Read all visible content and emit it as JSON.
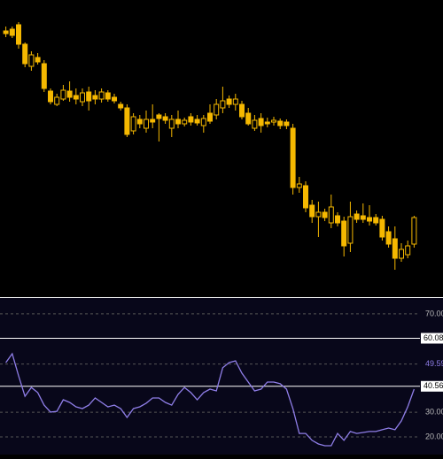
{
  "chart_data": [
    {
      "type": "candlestick",
      "color": "#f5b800",
      "ylim": [
        70,
        400
      ],
      "categories": [
        null,
        null,
        null,
        null,
        null,
        null,
        null,
        null,
        null,
        null,
        null,
        null,
        null,
        null,
        null,
        null,
        null,
        null,
        null,
        null,
        null,
        null,
        null,
        null,
        null,
        null,
        null,
        null,
        null,
        null,
        null,
        null,
        null,
        null,
        null,
        null,
        null,
        null,
        null,
        null,
        null,
        null,
        null,
        null,
        null,
        null,
        null,
        null,
        null,
        null,
        null,
        null,
        null,
        null,
        null,
        null,
        null,
        null,
        null,
        null,
        null,
        null,
        null,
        null,
        null
      ],
      "open": [
        365,
        367,
        372,
        350,
        325,
        335,
        328,
        297,
        282,
        288,
        297,
        292,
        285,
        296,
        292,
        288,
        295,
        290,
        282,
        278,
        252,
        265,
        255,
        265,
        270,
        268,
        255,
        265,
        260,
        268,
        265,
        258,
        272,
        270,
        278,
        288,
        282,
        282,
        272,
        255,
        266,
        262,
        262,
        263,
        262,
        255,
        188,
        190,
        168,
        155,
        160,
        148,
        156,
        150,
        125,
        158,
        156,
        154,
        154,
        152,
        138,
        130,
        108,
        112,
        124
      ],
      "high": [
        370,
        370,
        375,
        352,
        342,
        340,
        332,
        300,
        294,
        304,
        308,
        300,
        300,
        302,
        298,
        300,
        298,
        294,
        285,
        282,
        272,
        270,
        275,
        282,
        272,
        272,
        270,
        275,
        267,
        272,
        270,
        270,
        282,
        288,
        302,
        292,
        294,
        286,
        278,
        270,
        272,
        267,
        268,
        266,
        265,
        260,
        200,
        195,
        174,
        172,
        164,
        180,
        160,
        155,
        172,
        162,
        170,
        168,
        158,
        156,
        144,
        144,
        125,
        128,
        156
      ],
      "low": [
        358,
        357,
        345,
        324,
        320,
        327,
        296,
        282,
        280,
        286,
        285,
        282,
        280,
        275,
        282,
        284,
        285,
        283,
        275,
        245,
        248,
        255,
        250,
        255,
        240,
        260,
        245,
        255,
        257,
        258,
        258,
        250,
        260,
        265,
        272,
        278,
        275,
        265,
        258,
        252,
        250,
        256,
        258,
        254,
        254,
        180,
        182,
        160,
        148,
        132,
        150,
        142,
        144,
        110,
        115,
        148,
        148,
        145,
        145,
        128,
        120,
        95,
        104,
        108,
        120
      ],
      "close": [
        362,
        360,
        350,
        328,
        338,
        330,
        300,
        285,
        290,
        298,
        290,
        288,
        295,
        286,
        288,
        296,
        288,
        286,
        278,
        248,
        268,
        260,
        265,
        262,
        266,
        264,
        265,
        260,
        264,
        262,
        261,
        266,
        263,
        282,
        286,
        282,
        288,
        268,
        260,
        264,
        258,
        260,
        264,
        258,
        258,
        188,
        192,
        165,
        155,
        160,
        154,
        166,
        148,
        122,
        155,
        152,
        152,
        150,
        148,
        132,
        124,
        108,
        118,
        122,
        154
      ]
    },
    {
      "type": "line",
      "color": "#8f7ee8",
      "xlim": [
        -0.5,
        64.5
      ],
      "ylim": [
        12.8,
        76.8
      ],
      "x": [
        0,
        1,
        2,
        3,
        4,
        5,
        6,
        7,
        8,
        9,
        10,
        11,
        12,
        13,
        14,
        15,
        16,
        17,
        18,
        19,
        20,
        21,
        22,
        23,
        24,
        25,
        26,
        27,
        28,
        29,
        30,
        31,
        32,
        33,
        34,
        35,
        36,
        37,
        38,
        39,
        40,
        41,
        42,
        43,
        44,
        45,
        46,
        47,
        48,
        49,
        50,
        51,
        52,
        53,
        54,
        55,
        56,
        57,
        58,
        59,
        60,
        61,
        62,
        63,
        64
      ],
      "values": [
        50.2,
        53.8,
        44.8,
        36.5,
        40.1,
        38.0,
        32.9,
        30.1,
        30.4,
        35.1,
        34.0,
        32.2,
        31.5,
        32.9,
        35.8,
        34.0,
        32.2,
        32.9,
        31.5,
        27.9,
        31.5,
        32.2,
        33.7,
        35.8,
        35.8,
        34.0,
        32.9,
        37.3,
        40.1,
        38.0,
        35.1,
        38.0,
        39.4,
        38.7,
        48.1,
        50.2,
        50.9,
        45.9,
        42.3,
        38.7,
        39.4,
        42.3,
        42.3,
        41.6,
        39.4,
        31.5,
        21.4,
        21.4,
        18.6,
        17.1,
        16.4,
        16.4,
        21.4,
        18.6,
        22.2,
        21.4,
        21.8,
        22.2,
        22.2,
        22.9,
        23.6,
        22.9,
        26.5,
        32.2,
        39.4
      ],
      "yticks": [
        {
          "value": 70,
          "label": "70.00"
        },
        {
          "value": 30,
          "label": "30.00"
        },
        {
          "value": 20,
          "label": "20.00"
        }
      ],
      "levels": [
        60.08,
        40.56
      ],
      "midline": 49.59
    }
  ]
}
